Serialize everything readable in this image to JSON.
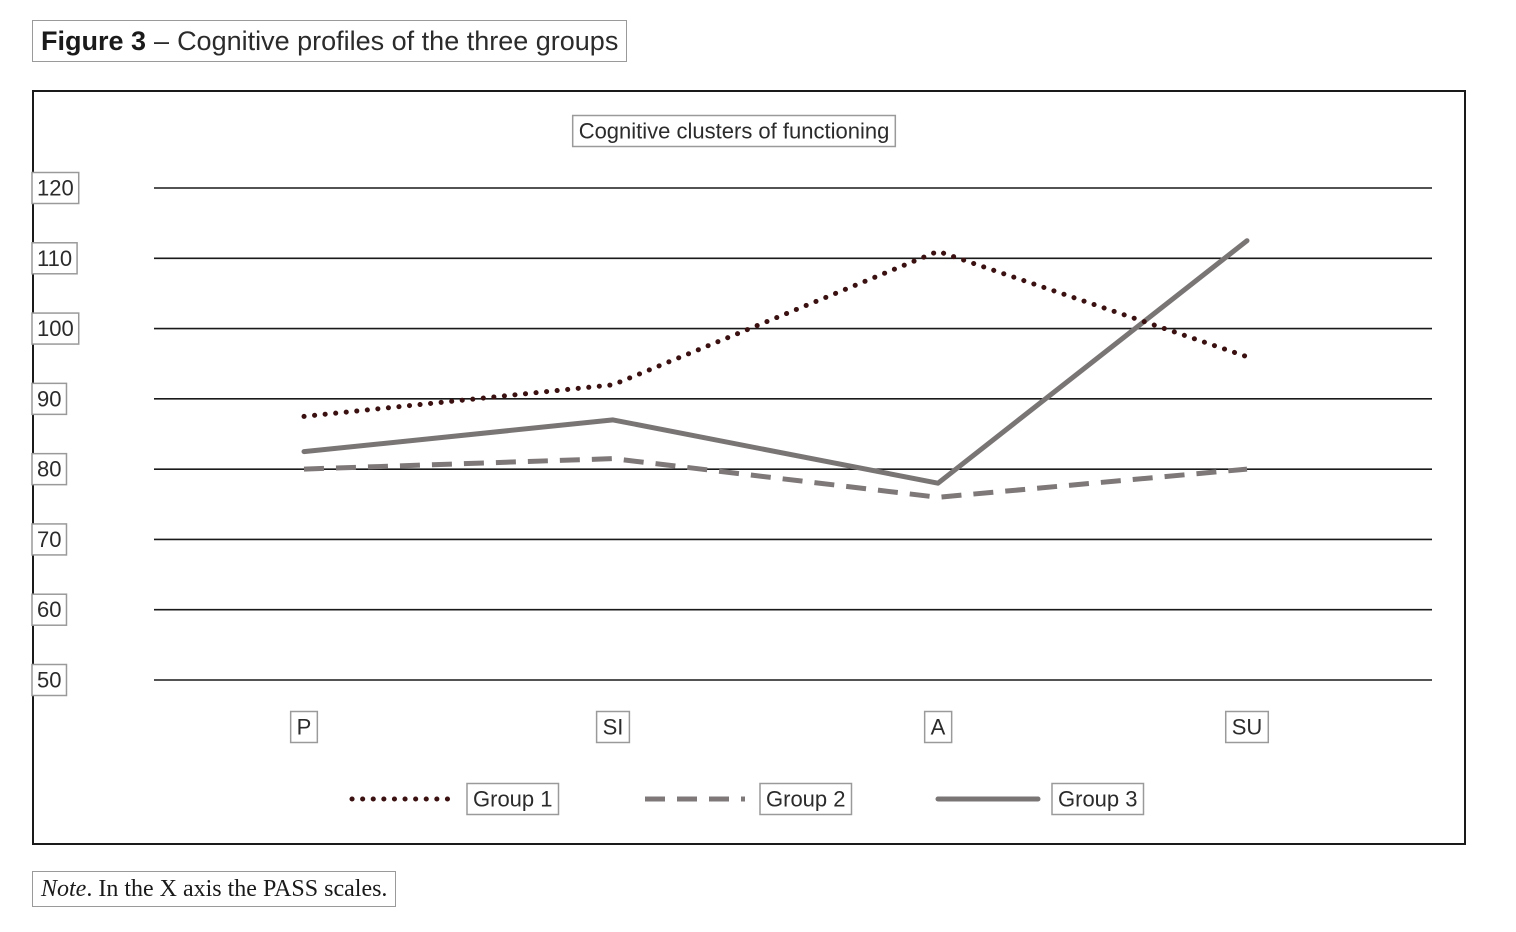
{
  "figure": {
    "label": "Figure 3",
    "dash": "–",
    "caption": "Cognitive profiles of the three groups"
  },
  "note": {
    "lead": "Note",
    "text": ". In the X axis the PASS scales."
  },
  "colors": {
    "group1": "#3a1010",
    "group2": "#7e7878",
    "group3": "#7a7575",
    "gridline": "#1a1a1a",
    "label_border": "#9a9a9a",
    "text": "#2b2b2b"
  },
  "chart_data": {
    "type": "line",
    "title": "Cognitive clusters of functioning",
    "categories": [
      "P",
      "SI",
      "A",
      "SU"
    ],
    "y_ticks": [
      "120",
      "110",
      "100",
      "90",
      "80",
      "70",
      "60",
      "50"
    ],
    "ylim": [
      50,
      120
    ],
    "grid": true,
    "legend_position": "bottom",
    "series": [
      {
        "name": "Group 1",
        "style": "dotted",
        "values": [
          87.5,
          92,
          111,
          96
        ]
      },
      {
        "name": "Group 2",
        "style": "dashed",
        "values": [
          80,
          81.5,
          76,
          80
        ]
      },
      {
        "name": "Group 3",
        "style": "solid",
        "values": [
          82.5,
          87,
          78,
          112.5
        ]
      }
    ]
  }
}
